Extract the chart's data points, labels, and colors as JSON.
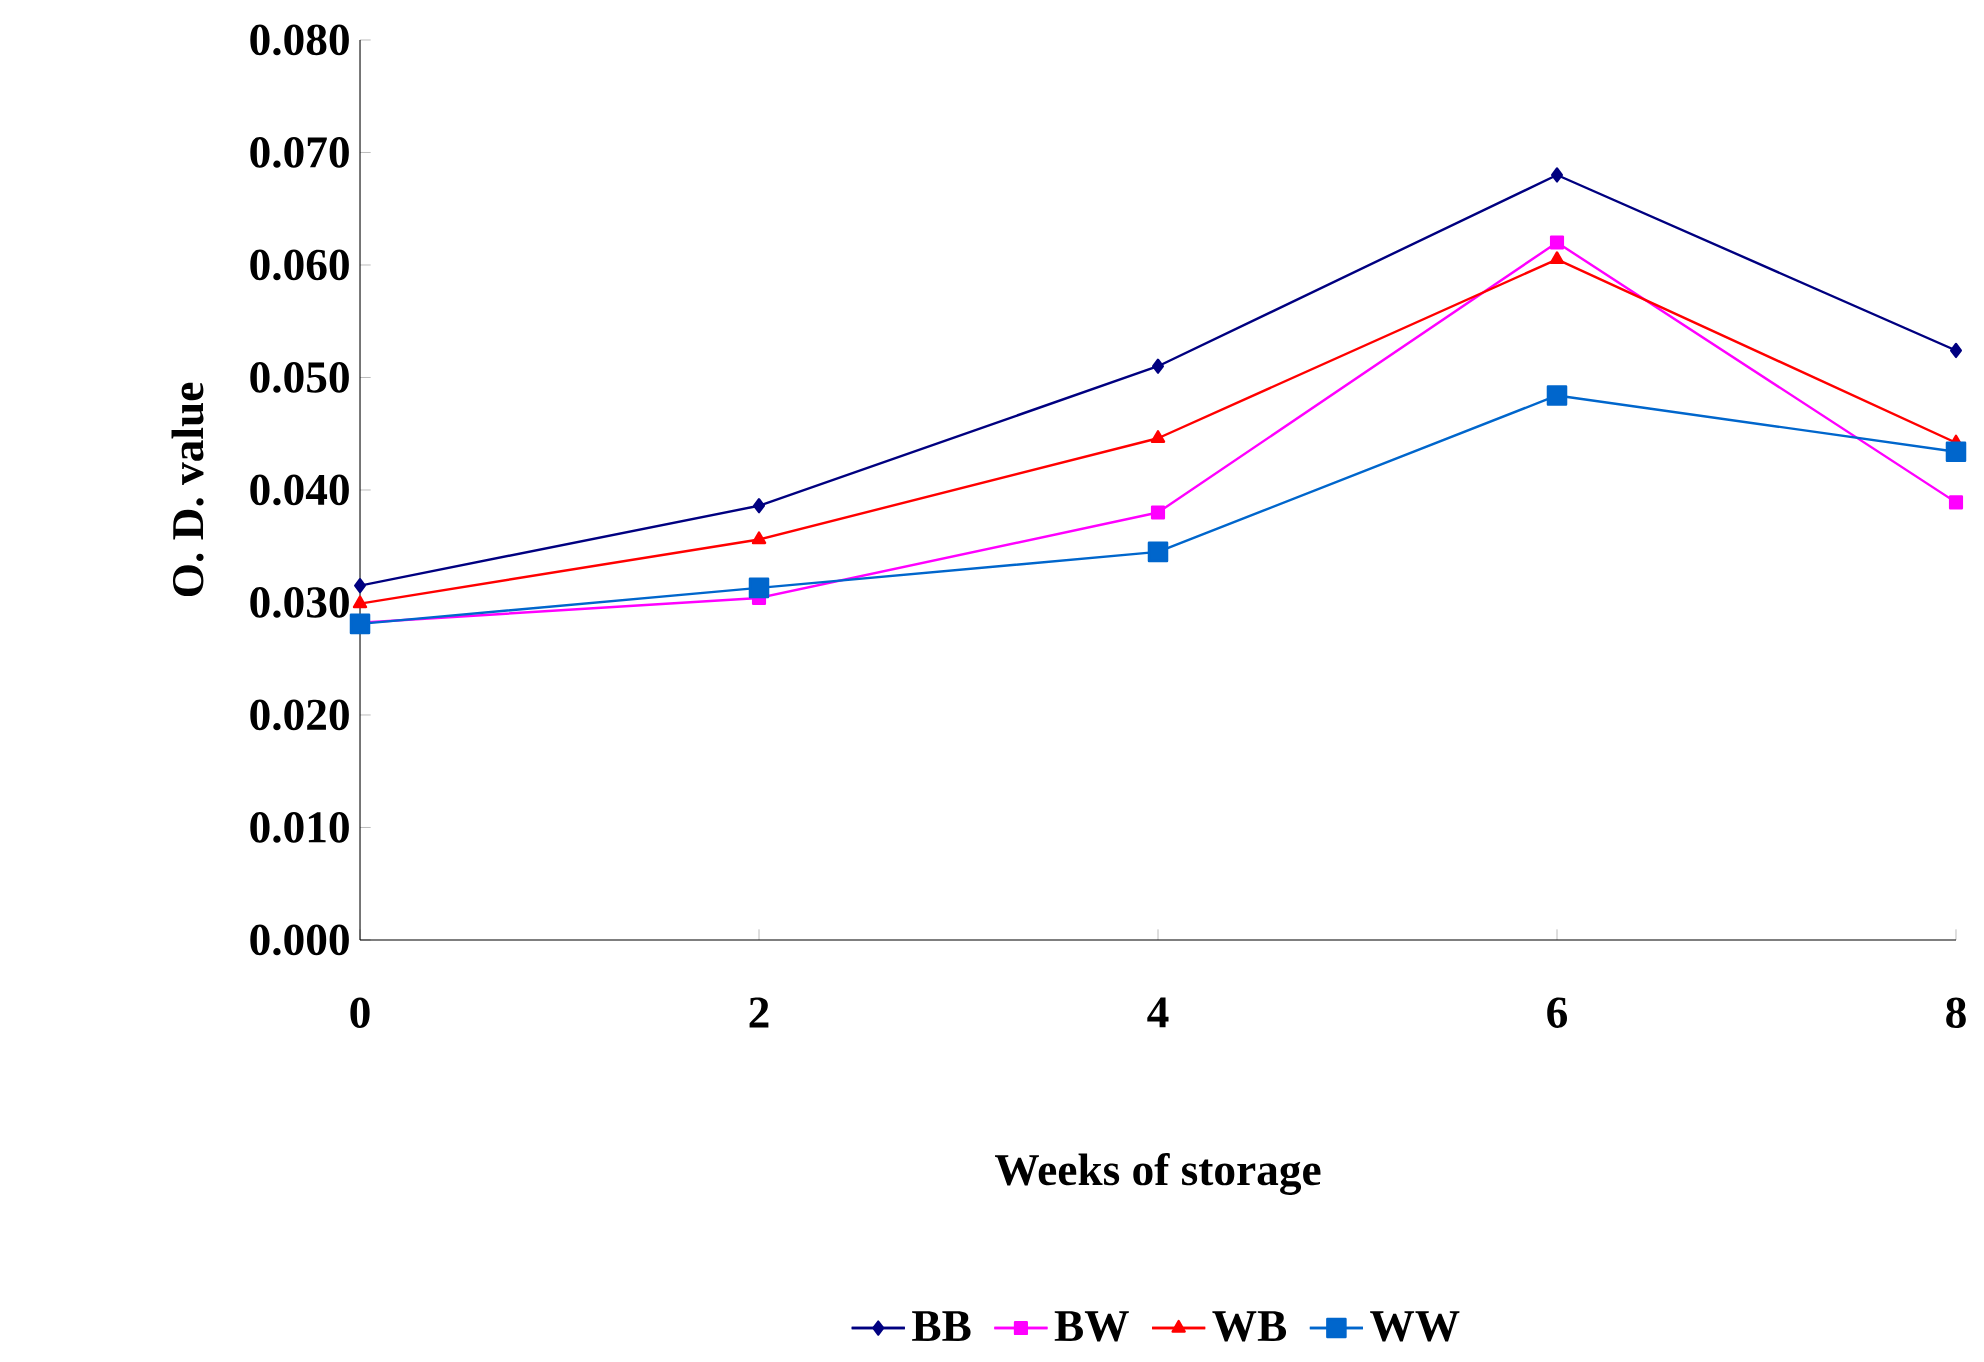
{
  "chart_data": {
    "type": "line",
    "xlabel": "Weeks of  storage",
    "ylabel": "O. D. value",
    "x": [
      0,
      2,
      4,
      6,
      8
    ],
    "xlim": [
      0,
      8
    ],
    "xticks": [
      0,
      2,
      4,
      6,
      8
    ],
    "ylim": [
      0,
      0.08
    ],
    "yticks": [
      {
        "value": 0,
        "label": "0.000"
      },
      {
        "value": 0.01,
        "label": "0.010"
      },
      {
        "value": 0.02,
        "label": "0.020"
      },
      {
        "value": 0.03,
        "label": "0.030"
      },
      {
        "value": 0.04,
        "label": "0.040"
      },
      {
        "value": 0.05,
        "label": "0.050"
      },
      {
        "value": 0.06,
        "label": "0.060"
      },
      {
        "value": 0.07,
        "label": "0.070"
      },
      {
        "value": 0.08,
        "label": "0.080"
      }
    ],
    "grid": false,
    "legend": "bottom",
    "line_style": "solid",
    "series": [
      {
        "name": "BB",
        "color": "#000080",
        "marker": "diamond",
        "values": [
          0.0315,
          0.0386,
          0.051,
          0.068,
          0.0524
        ]
      },
      {
        "name": "BW",
        "color": "#ff00ff",
        "marker": "square",
        "values": [
          0.0282,
          0.0304,
          0.038,
          0.062,
          0.0389
        ]
      },
      {
        "name": "WB",
        "color": "#ff0000",
        "marker": "triangle",
        "values": [
          0.0299,
          0.0356,
          0.0446,
          0.0605,
          0.0442
        ]
      },
      {
        "name": "WW",
        "color": "#0066cc",
        "marker": "square",
        "values": [
          0.0281,
          0.0313,
          0.0345,
          0.0484,
          0.0434
        ]
      }
    ]
  }
}
